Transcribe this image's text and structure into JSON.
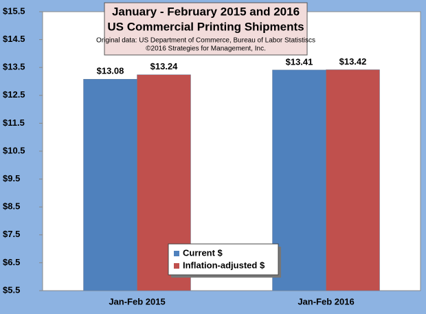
{
  "chart_data": {
    "type": "bar",
    "title": [
      "January - February 2015 and 2016",
      "US Commercial Printing Shipments"
    ],
    "subtitle": [
      "Original data: US Department of Commerce, Bureau of Labor Statistiscs",
      "©2016 Strategies for Management, Inc."
    ],
    "categories": [
      "Jan-Feb 2015",
      "Jan-Feb 2016"
    ],
    "series": [
      {
        "name": "Current $",
        "color": "#4f81bd",
        "values": [
          13.08,
          13.41
        ],
        "value_labels": [
          "$13.08",
          "$13.41"
        ]
      },
      {
        "name": "Inflation-adjusted $",
        "color": "#c0504d",
        "values": [
          13.24,
          13.42
        ],
        "value_labels": [
          "$13.24",
          "$13.42"
        ]
      }
    ],
    "ylim": [
      5.5,
      15.5
    ],
    "yticks": [
      {
        "value": 5.5,
        "label": "$5.5"
      },
      {
        "value": 6.5,
        "label": "$6.5"
      },
      {
        "value": 7.5,
        "label": "$7.5"
      },
      {
        "value": 8.5,
        "label": "$8.5"
      },
      {
        "value": 9.5,
        "label": "$9.5"
      },
      {
        "value": 10.5,
        "label": "$10.5"
      },
      {
        "value": 11.5,
        "label": "$11.5"
      },
      {
        "value": 12.5,
        "label": "$12.5"
      },
      {
        "value": 13.5,
        "label": "$13.5"
      },
      {
        "value": 14.5,
        "label": "$14.5"
      },
      {
        "value": 15.5,
        "label": "$15.5"
      }
    ],
    "grid": false,
    "legend": "bottom"
  }
}
